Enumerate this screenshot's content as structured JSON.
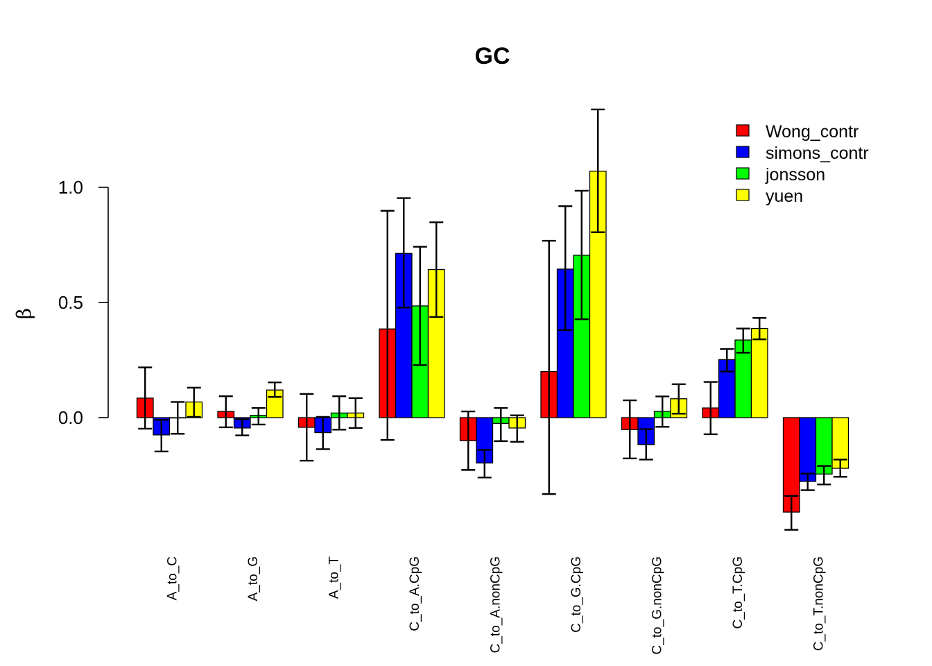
{
  "chart_data": {
    "type": "bar",
    "title": "GC",
    "xlabel": "",
    "ylabel": "β",
    "ylim": [
      -0.6,
      1.4
    ],
    "yticks": [
      0.0,
      0.5,
      1.0
    ],
    "ytick_labels": [
      "0.0",
      "0.5",
      "1.0"
    ],
    "grid": false,
    "legend_position": "top-right",
    "categories": [
      "A_to_C",
      "A_to_G",
      "A_to_T",
      "C_to_A.CpG",
      "C_to_A.nonCpG",
      "C_to_G.CpG",
      "C_to_G.nonCpG",
      "C_to_T.CpG",
      "C_to_T.nonCpG"
    ],
    "series": [
      {
        "name": "Wong_contr",
        "color": "#ff0000",
        "values": [
          0.085,
          0.027,
          -0.042,
          0.385,
          -0.1,
          0.2,
          -0.052,
          0.042,
          -0.41
        ],
        "err_low": [
          -0.048,
          -0.042,
          -0.187,
          -0.097,
          -0.227,
          -0.332,
          -0.177,
          -0.072,
          -0.487
        ],
        "err_high": [
          0.218,
          0.093,
          0.103,
          0.898,
          0.027,
          0.768,
          0.075,
          0.155,
          -0.34
        ]
      },
      {
        "name": "simons_contr",
        "color": "#0000ff",
        "values": [
          -0.075,
          -0.045,
          -0.065,
          0.713,
          -0.197,
          0.645,
          -0.117,
          0.252,
          -0.277
        ],
        "err_low": [
          -0.147,
          -0.077,
          -0.137,
          0.478,
          -0.26,
          0.38,
          -0.182,
          0.2,
          -0.315
        ],
        "err_high": [
          -0.01,
          -0.007,
          0.003,
          0.953,
          -0.14,
          0.918,
          -0.05,
          0.298,
          -0.243
        ]
      },
      {
        "name": "jonsson",
        "color": "#00ff00",
        "values": [
          0.0,
          0.01,
          0.02,
          0.485,
          -0.025,
          0.705,
          0.027,
          0.337,
          -0.245
        ],
        "err_low": [
          -0.07,
          -0.03,
          -0.052,
          0.228,
          -0.102,
          0.427,
          -0.04,
          0.282,
          -0.29
        ],
        "err_high": [
          0.068,
          0.042,
          0.093,
          0.742,
          0.042,
          0.985,
          0.092,
          0.387,
          -0.21
        ]
      },
      {
        "name": "yuen",
        "color": "#ffff00",
        "values": [
          0.068,
          0.12,
          0.02,
          0.643,
          -0.045,
          1.07,
          0.082,
          0.387,
          -0.22
        ],
        "err_low": [
          0.003,
          0.09,
          -0.045,
          0.437,
          -0.105,
          0.805,
          0.017,
          0.34,
          -0.257
        ],
        "err_high": [
          0.13,
          0.153,
          0.085,
          0.848,
          0.01,
          1.338,
          0.145,
          0.433,
          -0.182
        ]
      }
    ]
  }
}
